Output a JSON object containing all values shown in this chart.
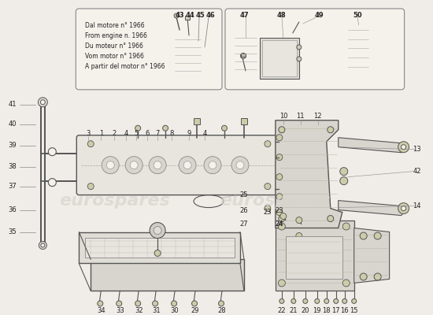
{
  "bg_color": "#f0ede8",
  "line_color": "#555555",
  "thin_line": "#777777",
  "text_color": "#222222",
  "fill_light": "#e8e5df",
  "fill_white": "#f5f2ec",
  "watermark_color": "#d8d4cc",
  "box1_text": [
    "Dal motore n° 1966",
    "From engine n. 1966",
    "Du moteur n° 1966",
    "Vom motor n° 1966",
    "A partir del motor n° 1966"
  ],
  "watermark": "eurospares"
}
